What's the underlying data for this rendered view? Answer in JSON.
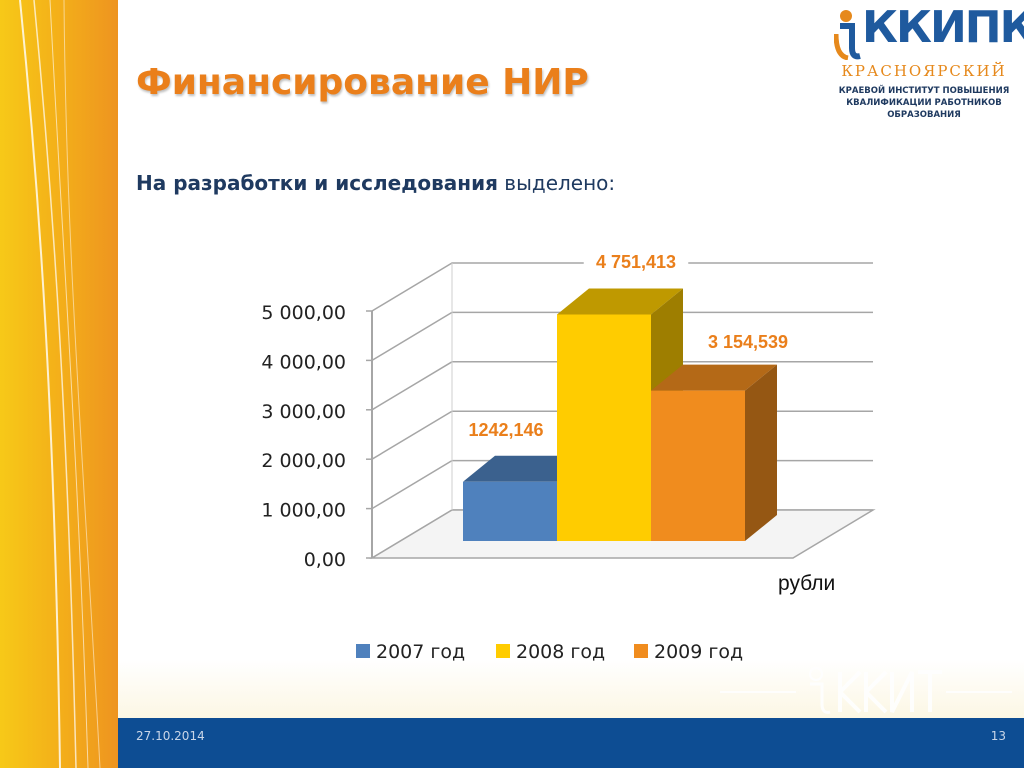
{
  "slide": {
    "title": "Финансирование НИР",
    "subtitle_bold": "На разработки и исследования",
    "subtitle_rest": " выделено:",
    "date": "27.10.2014",
    "page_number": "13"
  },
  "logo": {
    "brand": "КК",
    "brand_rest": "ИПК",
    "city": "КРАСНОЯРСКИЙ",
    "line1": "КРАЕВОЙ ИНСТИТУТ ПОВЫШЕНИЯ",
    "line2": "КВАЛИФИКАЦИИ РАБОТНИКОВ",
    "line3": "ОБРАЗОВАНИЯ"
  },
  "colors": {
    "accent": "#ea7f1b",
    "footer": "#0d4d93",
    "band": "#f4b219"
  },
  "chart_data": {
    "type": "bar",
    "style": "3d-column",
    "categories": [
      "2007 год",
      "2008 год",
      "2009 год"
    ],
    "values": [
      1242.146,
      4751.413,
      3154.539
    ],
    "data_labels": [
      "1242,146",
      "4 751,413",
      "3 154,539"
    ],
    "colors": [
      "#4f81bd",
      "#ffcc00",
      "#f08c1e"
    ],
    "y_ticks": [
      "0,00",
      "1 000,00",
      "2 000,00",
      "3 000,00",
      "4 000,00",
      "5 000,00"
    ],
    "ylim": [
      0,
      5000
    ],
    "unit_label": "рубли",
    "grid": true,
    "legend_position": "bottom"
  }
}
